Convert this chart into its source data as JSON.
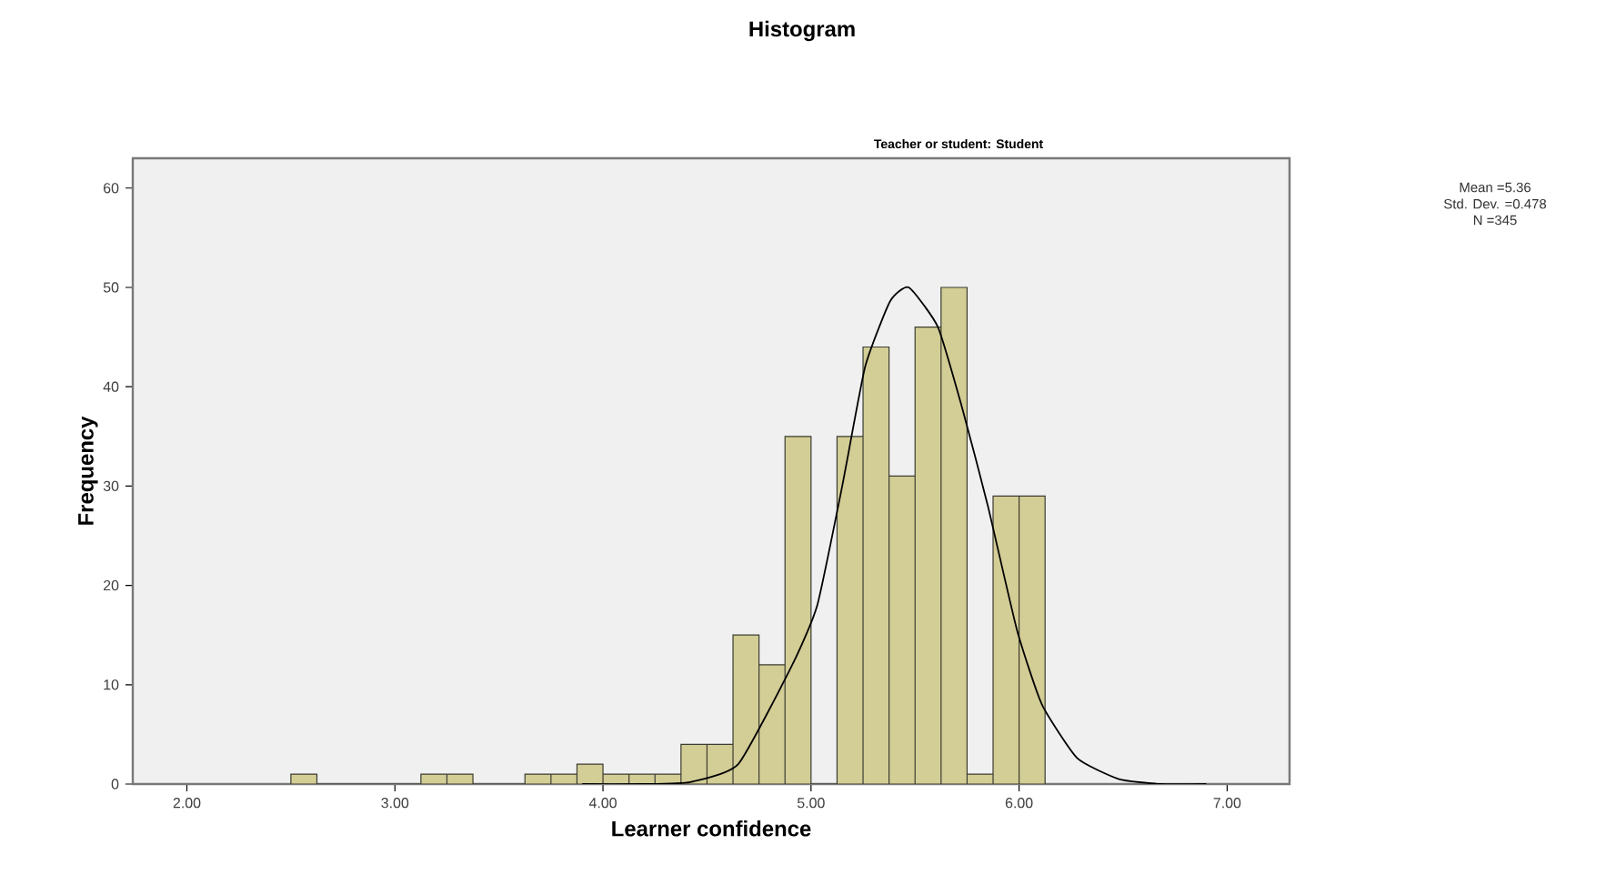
{
  "chart_data": {
    "type": "histogram",
    "title": "Histogram",
    "subtitle": "Teacher or student: Student",
    "xlabel": "Learner confidence",
    "ylabel": "Frequency",
    "annotations": [
      "Mean =5.36",
      "Std. Dev. =0.478",
      "N =345"
    ],
    "bins": [
      2.5,
      2.625,
      2.75,
      2.875,
      3.0,
      3.125,
      3.25,
      3.375,
      3.5,
      3.625,
      3.75,
      3.875,
      4.0,
      4.125,
      4.25,
      4.375,
      4.5,
      4.625,
      4.75,
      4.875,
      5.0,
      5.125,
      5.25,
      5.375,
      5.5,
      5.625,
      5.75,
      5.875,
      6.0,
      6.125
    ],
    "values": [
      1,
      0,
      0,
      0,
      0,
      1,
      1,
      0,
      0,
      1,
      1,
      2,
      1,
      1,
      1,
      4,
      4,
      15,
      12,
      35,
      0,
      35,
      44,
      31,
      46,
      50,
      1,
      29,
      29
    ],
    "color": "#d3cd96",
    "series": [
      {
        "type": "line",
        "color": "#000000",
        "x": [
          3.9,
          4.2,
          4.42,
          4.65,
          4.91,
          5.03,
          5.15,
          5.26,
          5.38,
          5.47,
          5.61,
          5.73,
          5.85,
          5.99,
          6.11,
          6.28,
          6.48,
          6.68,
          6.9
        ],
        "values": [
          0,
          0,
          0.2,
          2,
          12,
          18,
          30,
          42,
          48.6,
          50,
          46,
          37.6,
          28,
          15.5,
          8,
          2.6,
          0.5,
          0,
          0
        ]
      }
    ],
    "xlim": [
      1.74,
      7.3
    ],
    "ylim": [
      0,
      63
    ],
    "xticks": [
      {
        "value": 2,
        "label": "2.00"
      },
      {
        "value": 3,
        "label": "3.00"
      },
      {
        "value": 4,
        "label": "4.00"
      },
      {
        "value": 5,
        "label": "5.00"
      },
      {
        "value": 6,
        "label": "6.00"
      },
      {
        "value": 7,
        "label": "7.00"
      }
    ],
    "yticks": [
      0,
      10,
      20,
      30,
      40,
      50,
      60
    ],
    "grid": false
  }
}
